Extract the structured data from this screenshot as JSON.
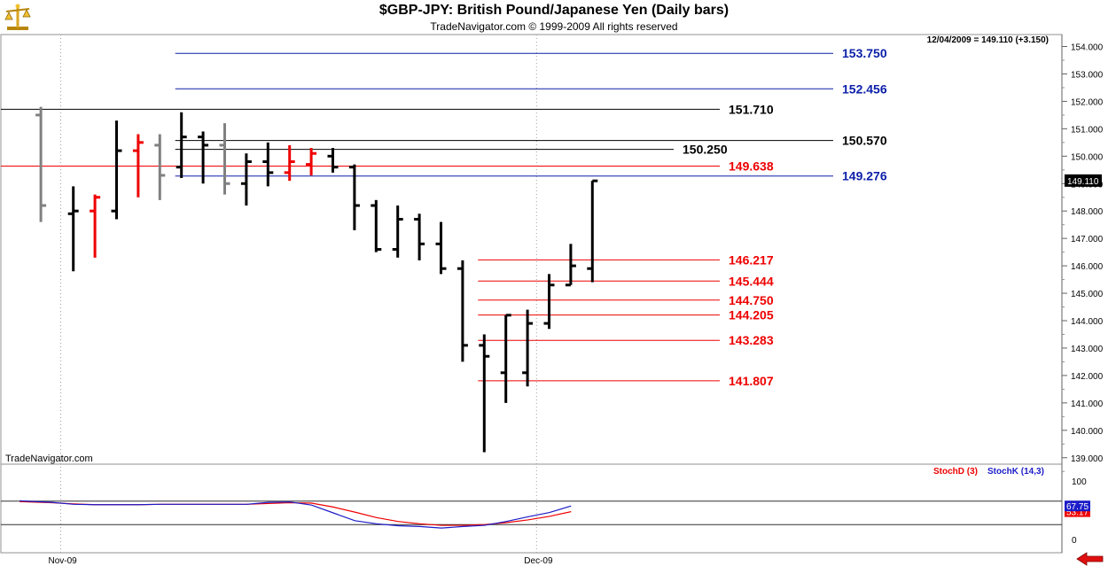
{
  "window": {
    "title": "$GBP-JPY:  British Pound/Japanese Yen  (Daily bars)",
    "subtitle": "TradeNavigator.com © 1999-2009 All rights reserved",
    "watermark": "TradeNavigator.com",
    "quote": "12/04/2009 = 149.110 (+3.150)",
    "last_price_label": "149.110"
  },
  "colors": {
    "up_bar": "#000000",
    "down_bar": "#ee0000",
    "history_bar": "#808080",
    "blue_level": "#0b1fa8",
    "red_level": "#ee0000",
    "black_level": "#000000",
    "stoch_d": "#ee0000",
    "stoch_k": "#1c1cc8"
  },
  "chart_data": [
    {
      "type": "ohlc",
      "title": "$GBP-JPY:  British Pound/Japanese Yen  (Daily bars)",
      "ylim": [
        138.75,
        154.6
      ],
      "y_ticks": [
        "154.000",
        "153.000",
        "152.000",
        "151.000",
        "150.000",
        "149.000",
        "148.000",
        "147.000",
        "146.000",
        "145.000",
        "144.000",
        "143.000",
        "142.000",
        "141.000",
        "140.000",
        "139.000"
      ],
      "x_ticks": [
        {
          "label": "Nov-09",
          "bar": 0.5
        },
        {
          "label": "Dec-09",
          "bar": 22.5
        }
      ],
      "bars": [
        {
          "i": -0.5,
          "o": 151.5,
          "h": 151.8,
          "l": 147.6,
          "c": 148.2,
          "color": "history"
        },
        {
          "i": 1,
          "o": 147.9,
          "h": 148.9,
          "l": 145.8,
          "c": 148.0,
          "color": "up"
        },
        {
          "i": 2,
          "o": 148.0,
          "h": 148.6,
          "l": 146.3,
          "c": 148.5,
          "color": "down"
        },
        {
          "i": 3,
          "o": 148.0,
          "h": 151.3,
          "l": 147.7,
          "c": 150.2,
          "color": "up"
        },
        {
          "i": 4,
          "o": 150.2,
          "h": 150.8,
          "l": 148.5,
          "c": 150.5,
          "color": "down"
        },
        {
          "i": 5,
          "o": 150.4,
          "h": 150.8,
          "l": 148.4,
          "c": 149.3,
          "color": "history"
        },
        {
          "i": 6,
          "o": 149.6,
          "h": 151.6,
          "l": 149.2,
          "c": 150.7,
          "color": "up"
        },
        {
          "i": 7,
          "o": 150.7,
          "h": 150.9,
          "l": 149.0,
          "c": 150.4,
          "color": "up"
        },
        {
          "i": 8,
          "o": 150.4,
          "h": 151.2,
          "l": 148.6,
          "c": 149.0,
          "color": "history"
        },
        {
          "i": 9,
          "o": 149.0,
          "h": 150.1,
          "l": 148.2,
          "c": 149.8,
          "color": "up"
        },
        {
          "i": 10,
          "o": 149.8,
          "h": 150.5,
          "l": 148.9,
          "c": 149.4,
          "color": "up"
        },
        {
          "i": 11,
          "o": 149.4,
          "h": 150.4,
          "l": 149.1,
          "c": 149.8,
          "color": "down"
        },
        {
          "i": 12,
          "o": 149.7,
          "h": 150.3,
          "l": 149.3,
          "c": 150.1,
          "color": "down"
        },
        {
          "i": 13,
          "o": 150.0,
          "h": 150.3,
          "l": 149.4,
          "c": 149.6,
          "color": "up"
        },
        {
          "i": 14,
          "o": 149.6,
          "h": 149.7,
          "l": 147.3,
          "c": 148.2,
          "color": "up"
        },
        {
          "i": 15,
          "o": 148.2,
          "h": 148.4,
          "l": 146.5,
          "c": 146.6,
          "color": "up"
        },
        {
          "i": 16,
          "o": 146.6,
          "h": 148.2,
          "l": 146.3,
          "c": 147.7,
          "color": "up"
        },
        {
          "i": 17,
          "o": 147.7,
          "h": 147.9,
          "l": 146.2,
          "c": 146.8,
          "color": "up"
        },
        {
          "i": 18,
          "o": 146.8,
          "h": 147.6,
          "l": 145.7,
          "c": 145.9,
          "color": "up"
        },
        {
          "i": 19,
          "o": 145.9,
          "h": 146.2,
          "l": 142.5,
          "c": 143.1,
          "color": "up"
        },
        {
          "i": 20,
          "o": 143.1,
          "h": 143.5,
          "l": 139.2,
          "c": 142.7,
          "color": "up"
        },
        {
          "i": 21,
          "o": 142.1,
          "h": 144.2,
          "l": 141.0,
          "c": 144.2,
          "color": "up"
        },
        {
          "i": 22,
          "o": 142.1,
          "h": 144.4,
          "l": 141.6,
          "c": 143.9,
          "color": "up"
        },
        {
          "i": 23,
          "o": 143.9,
          "h": 145.7,
          "l": 143.7,
          "c": 145.3,
          "color": "up"
        },
        {
          "i": 24,
          "o": 145.3,
          "h": 146.8,
          "l": 145.3,
          "c": 146.0,
          "color": "up"
        },
        {
          "i": 25,
          "o": 145.9,
          "h": 149.1,
          "l": 145.4,
          "c": 149.1,
          "color": "up"
        }
      ],
      "levels": [
        {
          "value": 153.75,
          "label": "153.750",
          "color": "blue",
          "from_bar": 6
        },
        {
          "value": 152.456,
          "label": "152.456",
          "color": "blue",
          "from_bar": 6
        },
        {
          "value": 151.71,
          "label": "151.710",
          "color": "black",
          "from_bar": -2
        },
        {
          "value": 150.57,
          "label": "150.570",
          "color": "black",
          "from_bar": 6
        },
        {
          "value": 150.25,
          "label": "150.250",
          "color": "black",
          "from_bar": 6
        },
        {
          "value": 149.638,
          "label": "149.638",
          "color": "red",
          "from_bar": -2
        },
        {
          "value": 149.276,
          "label": "149.276",
          "color": "blue",
          "from_bar": 6
        },
        {
          "value": 146.217,
          "label": "146.217",
          "color": "red",
          "from_bar": 20
        },
        {
          "value": 145.444,
          "label": "145.444",
          "color": "red",
          "from_bar": 20
        },
        {
          "value": 144.75,
          "label": "144.750",
          "color": "red",
          "from_bar": 20
        },
        {
          "value": 144.205,
          "label": "144.205",
          "color": "red",
          "from_bar": 20
        },
        {
          "value": 143.283,
          "label": "143.283",
          "color": "red",
          "from_bar": 20
        },
        {
          "value": 141.807,
          "label": "141.807",
          "color": "red",
          "from_bar": 20
        }
      ]
    },
    {
      "type": "line",
      "ylim": [
        0,
        100
      ],
      "y_ticks": [
        "100",
        "0"
      ],
      "legend": [
        "StochD (3)",
        "StochK (14,3)"
      ],
      "reference_lines": [
        80,
        20
      ],
      "series": [
        {
          "name": "StochD (3)",
          "color": "red",
          "last_label": "53.17",
          "x": [
            -0.5,
            1,
            2,
            3,
            4,
            5,
            6,
            7,
            8,
            9,
            10,
            11,
            12,
            13,
            14,
            15,
            16,
            17,
            18,
            19,
            20,
            21,
            22,
            23,
            24,
            25
          ],
          "values": [
            79,
            76,
            73,
            71,
            71,
            71,
            72,
            72,
            72,
            72,
            72,
            74,
            76,
            75,
            65,
            52,
            38,
            28,
            22,
            18,
            18,
            20,
            25,
            32,
            41,
            53.17
          ]
        },
        {
          "name": "StochK (14,3)",
          "color": "blue",
          "last_label": "67.75",
          "x": [
            -0.5,
            1,
            2,
            3,
            4,
            5,
            6,
            7,
            8,
            9,
            10,
            11,
            12,
            13,
            14,
            15,
            16,
            17,
            18,
            19,
            20,
            21,
            22,
            23,
            24,
            25
          ],
          "values": [
            81,
            77,
            72,
            71,
            71,
            71,
            72,
            72,
            72,
            72,
            72,
            77,
            78,
            70,
            50,
            30,
            22,
            17,
            15,
            11,
            15,
            18,
            28,
            40,
            51,
            67.75
          ]
        }
      ]
    }
  ]
}
